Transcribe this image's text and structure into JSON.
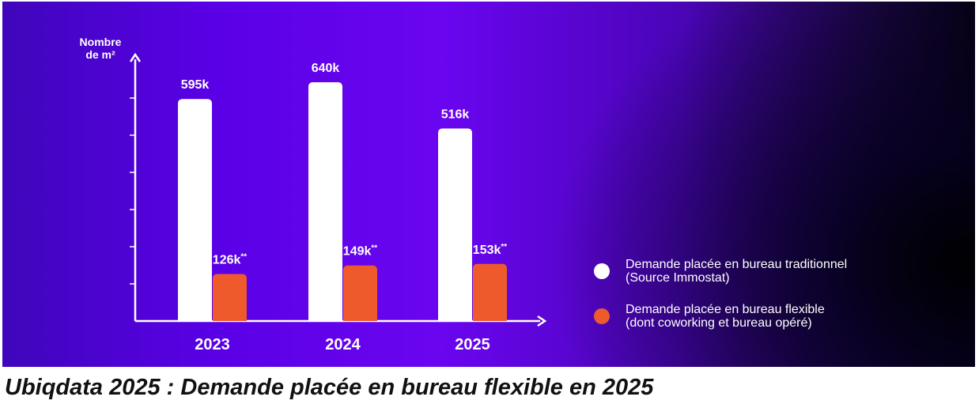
{
  "caption": "Ubiqdata 2025 : Demande placée en bureau flexible en 2025",
  "chart_data": {
    "type": "bar",
    "ylabel_line1": "Nombre",
    "ylabel_line2": "de m²",
    "categories": [
      "2023",
      "2024",
      "2025"
    ],
    "ylim": [
      0,
      700
    ],
    "series": [
      {
        "name_line1": "Demande placée en bureau traditionnel",
        "name_line2": "(Source Immostat)",
        "color": "#ffffff",
        "values": [
          595,
          640,
          516
        ],
        "labels": [
          "595k",
          "640k",
          "516k"
        ],
        "label_suffix": [
          "",
          "",
          ""
        ]
      },
      {
        "name_line1": "Demande placée en bureau flexible",
        "name_line2": "(dont coworking et bureau opéré)",
        "color": "#ef5a2c",
        "values": [
          126,
          149,
          153
        ],
        "labels": [
          "126k",
          "149k",
          "153k"
        ],
        "label_suffix": [
          "**",
          "**",
          "**"
        ]
      }
    ],
    "legend_position": "right",
    "grid": false
  }
}
